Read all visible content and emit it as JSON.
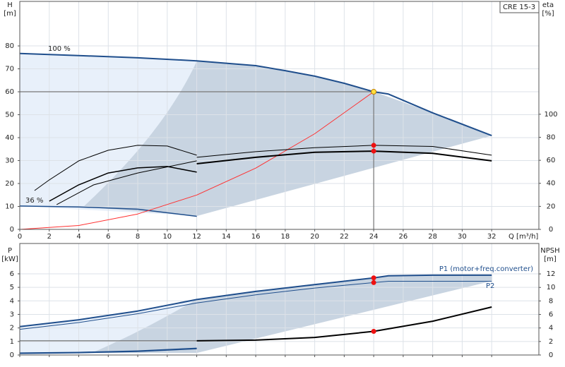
{
  "chart_data": [
    {
      "type": "line",
      "title": "CRE 15-3",
      "xlabel": "Q [m³/h]",
      "ylabel": "H",
      "yunit": "[m]",
      "y2label": "eta",
      "y2unit": "[%]",
      "xlim": [
        0,
        35.2
      ],
      "xticks": [
        0,
        2,
        4,
        6,
        8,
        10,
        12,
        14,
        16,
        18,
        20,
        22,
        24,
        26,
        28,
        30,
        32
      ],
      "ylim": [
        0,
        99.4
      ],
      "yticks": [
        0,
        10,
        20,
        30,
        40,
        50,
        60,
        70,
        80
      ],
      "y2lim": [
        0,
        198
      ],
      "y2ticks": [
        0,
        20,
        40,
        60,
        80,
        100
      ],
      "grid": true,
      "duty_point": {
        "x": 24,
        "y": 60
      },
      "series": [
        {
          "name": "100 %",
          "color": "#1f4e8c",
          "width": 2,
          "x": [
            0,
            4,
            8,
            12,
            16,
            18,
            20,
            22,
            24,
            25,
            28,
            32
          ],
          "values": [
            76.7,
            75.8,
            74.8,
            73.5,
            71.4,
            69.2,
            66.8,
            63.7,
            60,
            59,
            50.8,
            40.9
          ]
        },
        {
          "name": "36 %",
          "color": "#1f4e8c",
          "width": 1.5,
          "x": [
            0,
            4,
            8,
            12
          ],
          "values": [
            10.2,
            9.8,
            8.8,
            5.7
          ]
        },
        {
          "color": "#ff3030",
          "width": 1,
          "x": [
            0,
            4,
            8,
            12,
            16,
            20,
            24
          ],
          "values": [
            0,
            1.7,
            6.7,
            15,
            26.7,
            41.7,
            60
          ]
        },
        {
          "color": "#000000",
          "width": 1,
          "axis": "y2",
          "x": [
            12,
            16,
            20,
            24,
            28,
            32
          ],
          "values": [
            62.6,
            67.5,
            71,
            73,
            72,
            64.4
          ]
        },
        {
          "color": "#000000",
          "width": 2,
          "axis": "y2",
          "x": [
            12,
            16,
            20,
            24,
            28,
            32
          ],
          "values": [
            57,
            62.6,
            67,
            68,
            66,
            59.5
          ]
        },
        {
          "color": "#000000",
          "width": 1,
          "axis": "y2",
          "x": [
            1,
            2,
            4,
            6,
            8,
            10,
            12
          ],
          "values": [
            33.7,
            43,
            59.5,
            68.7,
            73,
            72.4,
            64.4
          ]
        },
        {
          "color": "#000000",
          "width": 1.5,
          "axis": "y2",
          "x": [
            2,
            4,
            6,
            8,
            10,
            12
          ],
          "values": [
            24.5,
            38.7,
            49,
            53.4,
            54.6,
            49.7
          ]
        },
        {
          "color": "#000000",
          "width": 1,
          "axis": "y2",
          "x": [
            2.5,
            5,
            8,
            12
          ],
          "values": [
            21.5,
            38.6,
            49,
            59.5
          ]
        }
      ],
      "points": [
        {
          "x": 24,
          "y": 60,
          "color": "#ffe040"
        },
        {
          "x": 24,
          "y": 73,
          "axis": "y2",
          "color": "#ee1111"
        },
        {
          "x": 24,
          "y": 68,
          "axis": "y2",
          "color": "#ee1111"
        }
      ]
    },
    {
      "type": "line",
      "ylabel": "P",
      "yunit": "[kW]",
      "y2label": "NPSH",
      "y2unit": "[m]",
      "xlim": [
        0,
        35.2
      ],
      "xticks": [
        0,
        2,
        4,
        6,
        8,
        10,
        12,
        14,
        16,
        18,
        20,
        22,
        24,
        26,
        28,
        30,
        32
      ],
      "ylim": [
        0,
        8.24
      ],
      "yticks": [
        0,
        1,
        2,
        3,
        4,
        5,
        6
      ],
      "y2lim": [
        0,
        16.5
      ],
      "y2ticks": [
        0,
        2,
        4,
        6,
        8,
        10,
        12
      ],
      "grid": true,
      "series": [
        {
          "name": "P1 (motor+freq.converter)",
          "color": "#1f4e8c",
          "width": 2,
          "x": [
            0,
            4,
            8,
            12,
            16,
            20,
            24,
            25,
            28,
            32
          ],
          "values": [
            2.1,
            2.6,
            3.25,
            4.1,
            4.7,
            5.2,
            5.7,
            5.85,
            5.9,
            5.9
          ]
        },
        {
          "name": "P2",
          "color": "#1f4e8c",
          "width": 1,
          "x": [
            0,
            4,
            8,
            12,
            16,
            20,
            24,
            25,
            28,
            32
          ],
          "values": [
            1.9,
            2.4,
            3.05,
            3.85,
            4.45,
            4.95,
            5.35,
            5.45,
            5.45,
            5.45
          ]
        },
        {
          "color": "#1f4e8c",
          "width": 1.5,
          "x": [
            0,
            4,
            8,
            12
          ],
          "values": [
            0.15,
            0.2,
            0.3,
            0.5
          ]
        },
        {
          "color": "#1f4e8c",
          "width": 1,
          "x": [
            0,
            4,
            8,
            12
          ],
          "values": [
            0.1,
            0.15,
            0.25,
            0.45
          ]
        },
        {
          "color": "#000000",
          "width": 2,
          "axis": "y2",
          "x": [
            12,
            16,
            20,
            24,
            28,
            32
          ],
          "values": [
            2.1,
            2.2,
            2.6,
            3.5,
            5,
            7.1
          ]
        },
        {
          "color": "#555555",
          "width": 1,
          "axis": "y2",
          "x": [
            0,
            12
          ],
          "values": [
            2.1,
            2.1
          ]
        }
      ],
      "points": [
        {
          "x": 24,
          "y": 5.7,
          "color": "#ee1111"
        },
        {
          "x": 24,
          "y": 5.35,
          "color": "#ee1111"
        },
        {
          "x": 24,
          "y": 3.5,
          "axis": "y2",
          "color": "#ee1111"
        }
      ]
    }
  ]
}
